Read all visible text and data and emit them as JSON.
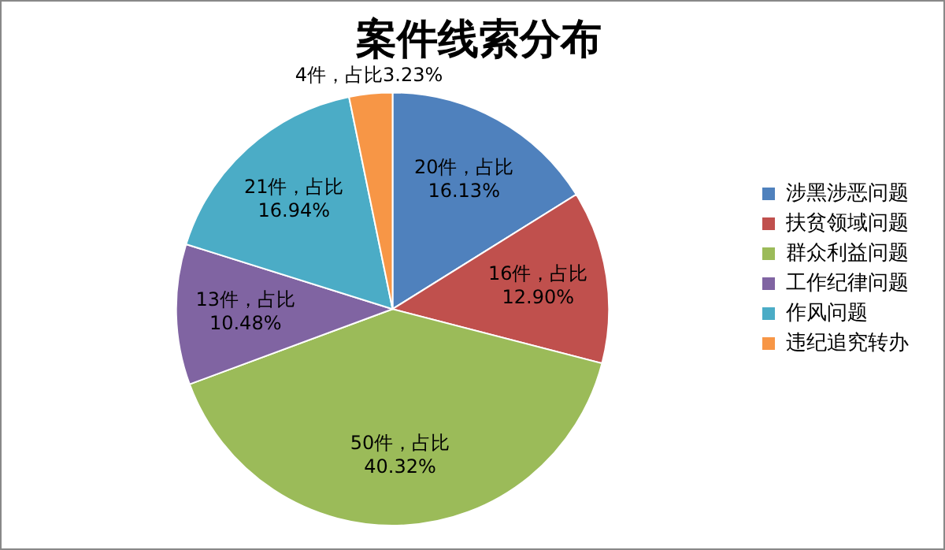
{
  "chart_data": {
    "type": "pie",
    "title": "案件线索分布",
    "categories": [
      "涉黑涉恶问题",
      "扶贫领域问题",
      "群众利益问题",
      "工作纪律问题",
      "作风问题",
      "违纪追究转办"
    ],
    "values": [
      20,
      16,
      50,
      13,
      21,
      4
    ],
    "colors": [
      "#4f81bd",
      "#c0504d",
      "#9bbb59",
      "#8064a2",
      "#4bacc6",
      "#f79646"
    ],
    "value_labels": [
      "20件，占比16.13%",
      "16件，占比12.90%",
      "50件，占比40.32%",
      "13件，占比10.48%",
      "21件，占比16.94%",
      "4件，占比3.23%"
    ],
    "legend": "right"
  }
}
